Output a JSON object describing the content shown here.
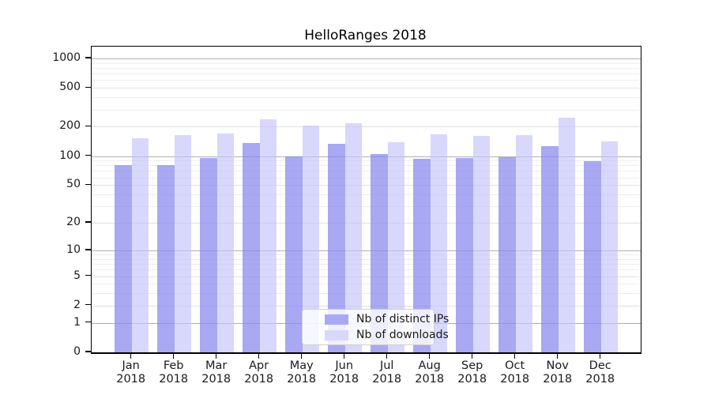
{
  "title": "HelloRanges 2018",
  "chart_data": {
    "type": "bar",
    "title": "HelloRanges 2018",
    "xlabel": "",
    "ylabel": "",
    "y_scale": "log10(value+1)",
    "ylim": [
      0,
      1320
    ],
    "grid": true,
    "legend_position": "bottom-center",
    "categories": [
      "Jan 2018",
      "Feb 2018",
      "Mar 2018",
      "Apr 2018",
      "May 2018",
      "Jun 2018",
      "Jul 2018",
      "Aug 2018",
      "Sep 2018",
      "Oct 2018",
      "Nov 2018",
      "Dec 2018"
    ],
    "month_labels": [
      "Jan",
      "Feb",
      "Mar",
      "Apr",
      "May",
      "Jun",
      "Jul",
      "Aug",
      "Sep",
      "Oct",
      "Nov",
      "Dec"
    ],
    "year_label": "2018",
    "series": [
      {
        "name": "Nb of distinct IPs",
        "color": "rgba(134,134,238,0.72)",
        "swatch_color": "#a9a9f2",
        "values": [
          81,
          81,
          95,
          137,
          99,
          133,
          104,
          93,
          95,
          97,
          126,
          88
        ]
      },
      {
        "name": "Nb of downloads",
        "color": "rgba(195,195,250,0.65)",
        "swatch_color": "#d8d8fa",
        "values": [
          153,
          164,
          169,
          237,
          205,
          218,
          140,
          166,
          161,
          164,
          246,
          142
        ]
      }
    ],
    "y_ticks": [
      0,
      1,
      2,
      5,
      10,
      20,
      50,
      100,
      200,
      500,
      1000
    ],
    "y_decade_ticks": [
      1,
      10,
      100,
      1000
    ],
    "y_minor_ticks": [
      3,
      4,
      6,
      7,
      8,
      9,
      30,
      40,
      60,
      70,
      80,
      90,
      300,
      400,
      600,
      700,
      800,
      900
    ]
  },
  "colors": {
    "grid_major": "#b0b0b0",
    "grid_labeled": "#e0e0e0",
    "grid_minor": "#eeeeee",
    "axis": "#000000",
    "text": "#1a1a1a"
  }
}
